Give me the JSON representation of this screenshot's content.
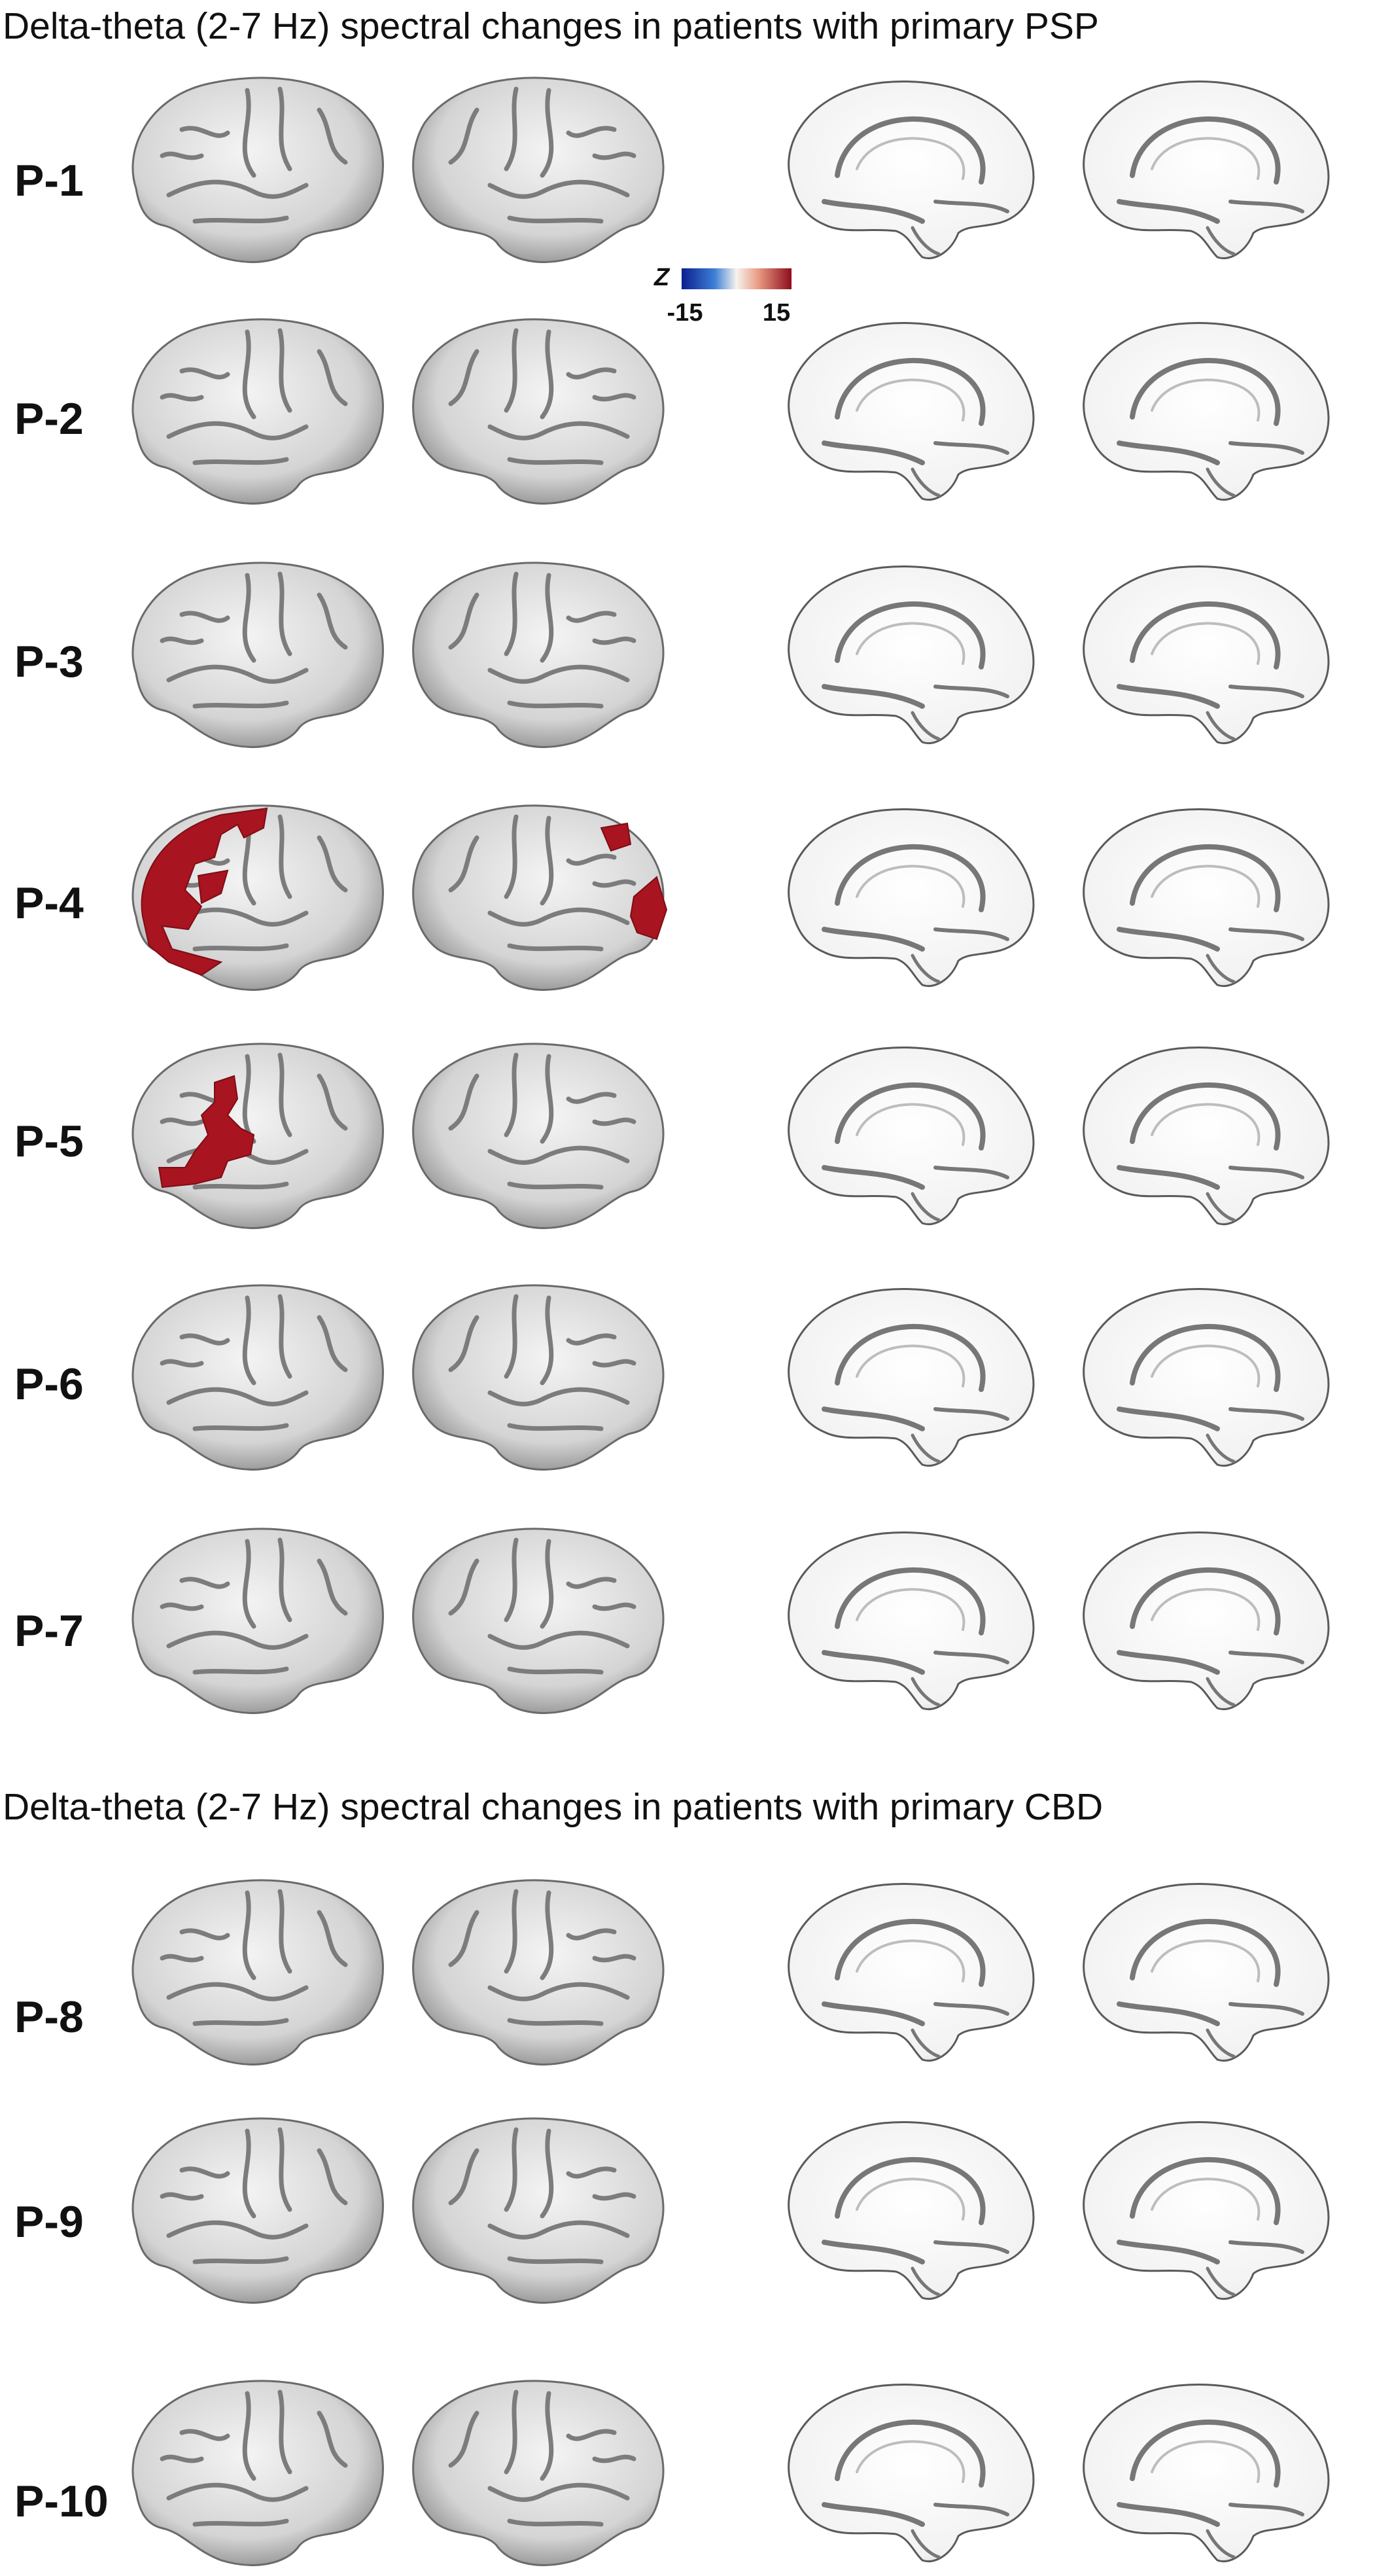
{
  "titles": [
    "Delta-theta (2-7 Hz) spectral changes in patients with primary PSP",
    "Delta-theta (2-7 Hz) spectral changes in patients with primary CBD"
  ],
  "colorbar": {
    "label": "Z",
    "min": -15,
    "max": 15
  },
  "rows": [
    "P-1",
    "P-2",
    "P-3",
    "P-4",
    "P-5",
    "P-6",
    "P-7",
    "P-8",
    "P-9",
    "P-10"
  ]
}
